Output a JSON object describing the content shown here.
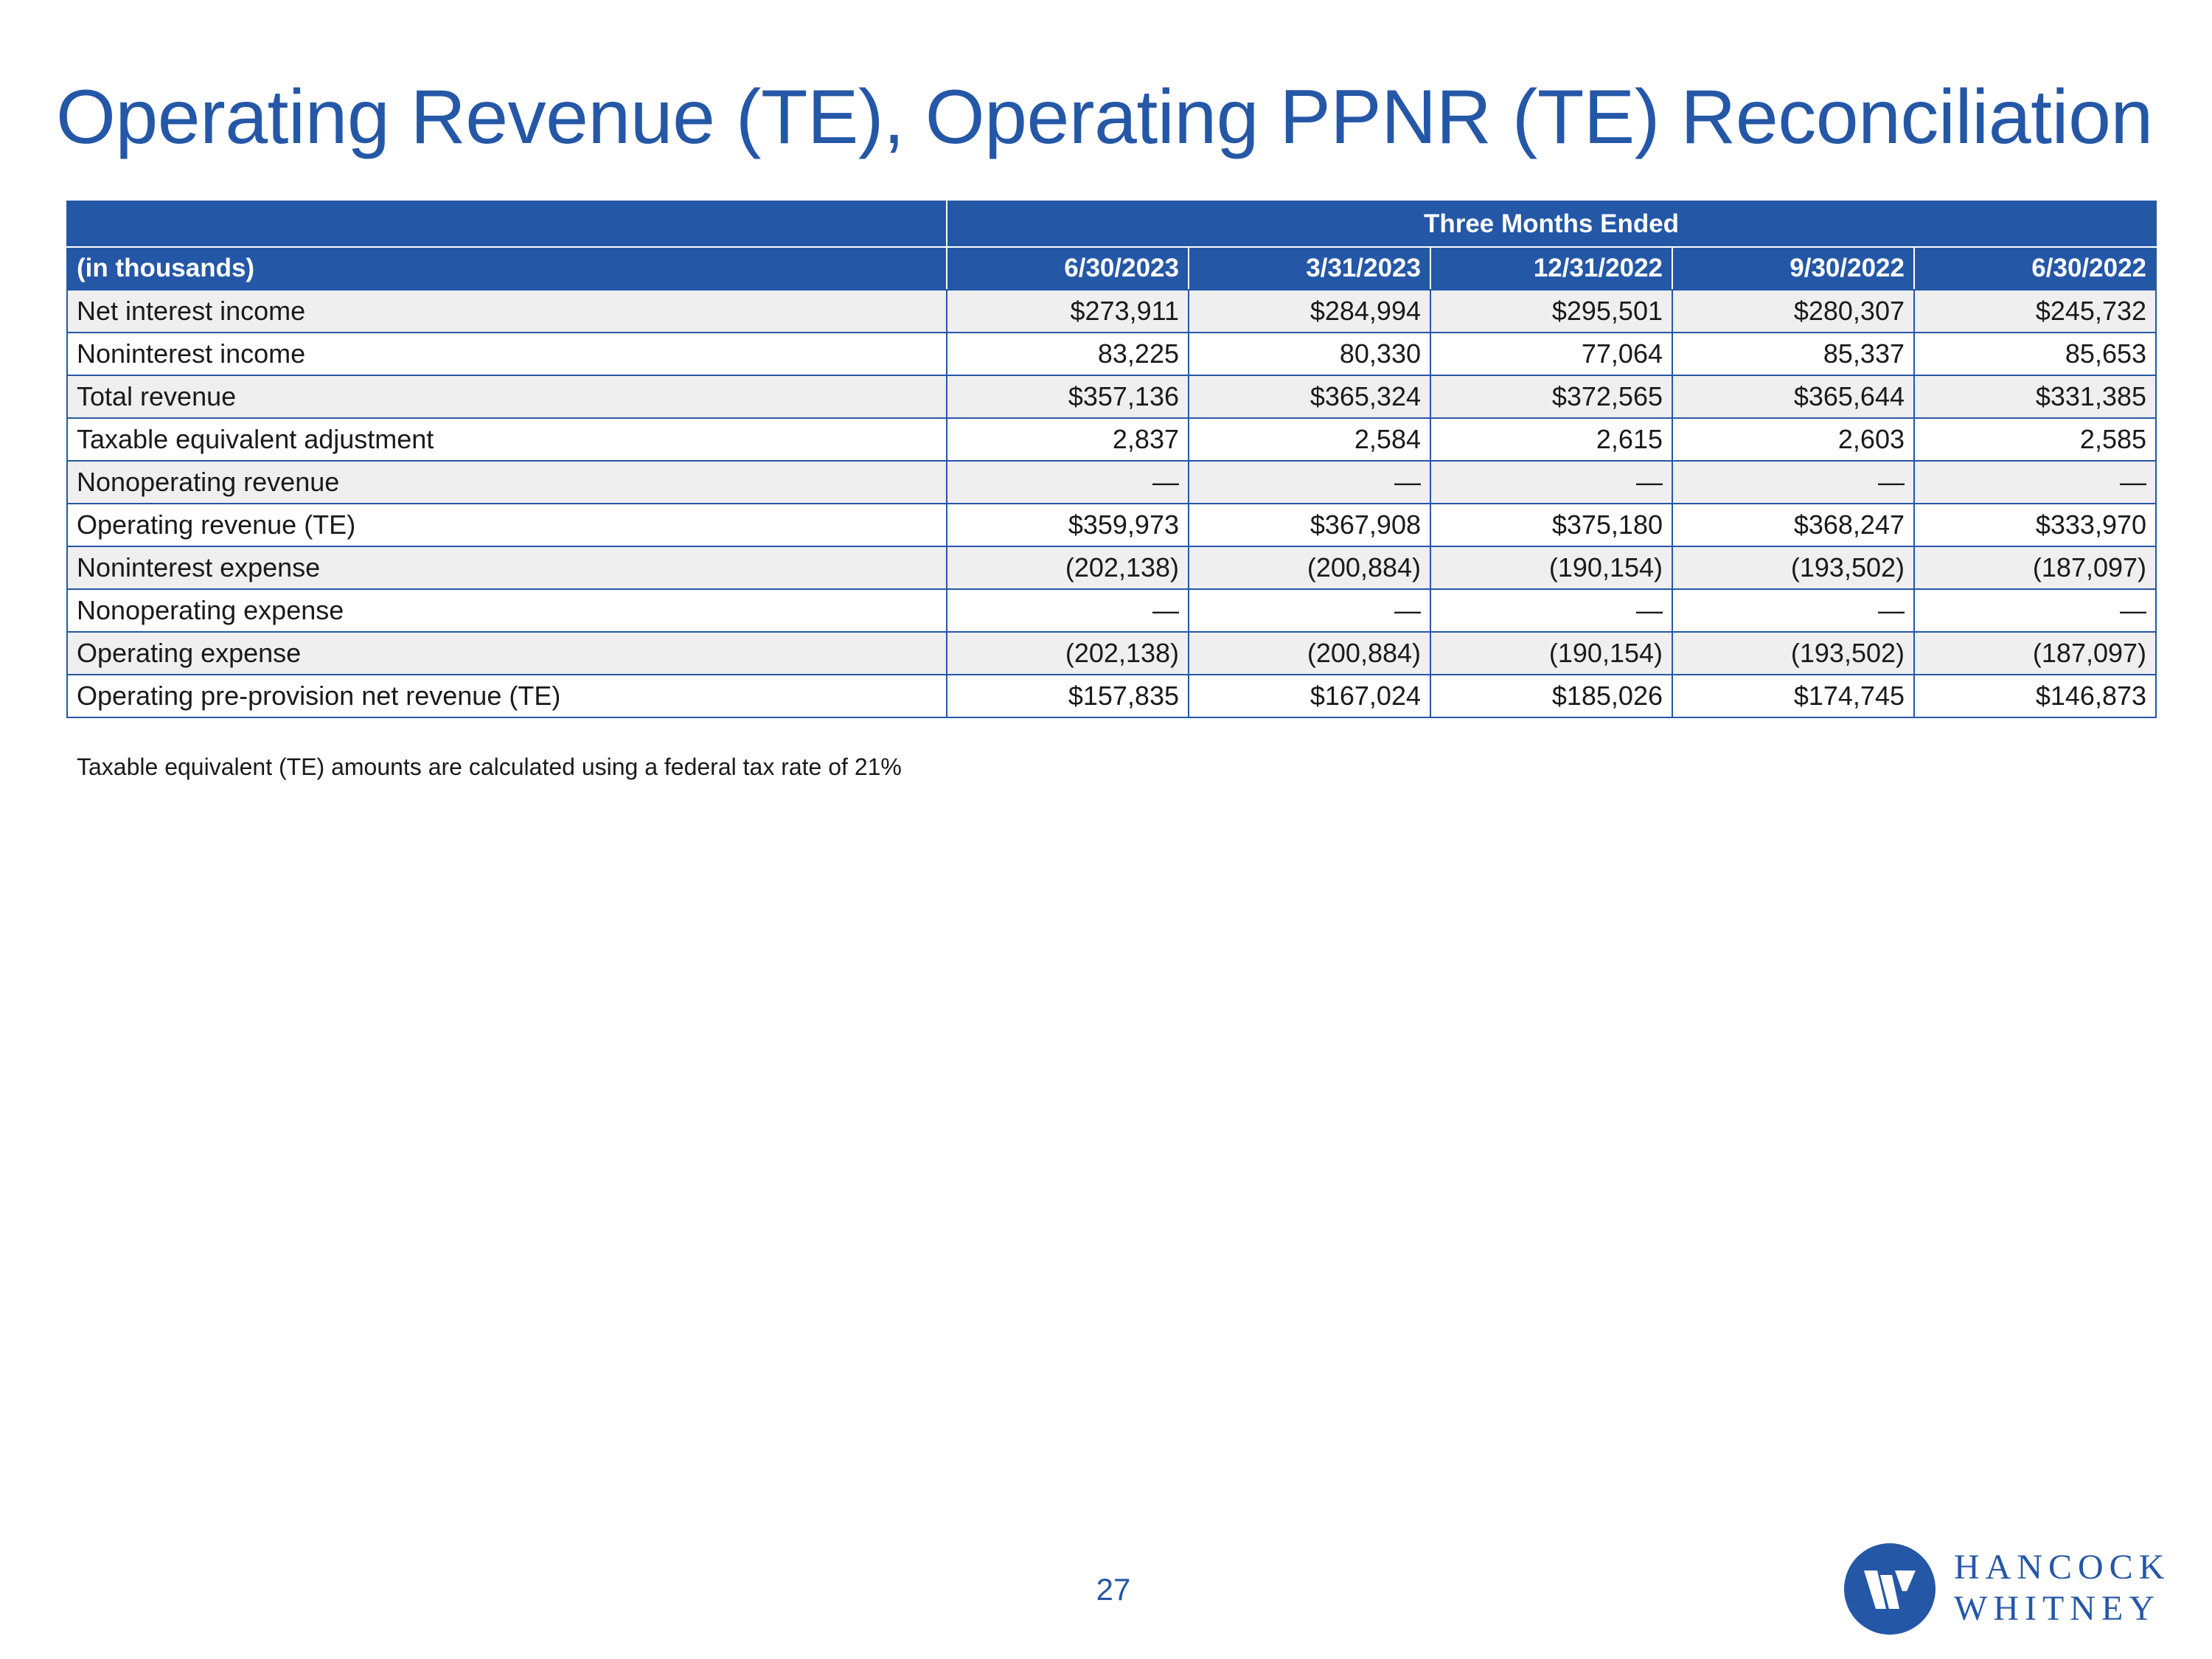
{
  "page": {
    "title": "Operating Revenue (TE), Operating PPNR (TE) Reconciliation",
    "footnote": "Taxable equivalent (TE) amounts are calculated using a federal tax rate of 21%",
    "page_number": "27"
  },
  "table": {
    "group_header": "Three Months Ended",
    "unit_label": "(in thousands)",
    "columns": [
      "6/30/2023",
      "3/31/2023",
      "12/31/2022",
      "9/30/2022",
      "6/30/2022"
    ],
    "rows": [
      {
        "label": "Net interest income",
        "values": [
          "$273,911",
          "$284,994",
          "$295,501",
          "$280,307",
          "$245,732"
        ]
      },
      {
        "label": "Noninterest income",
        "values": [
          "83,225",
          "80,330",
          "77,064",
          "85,337",
          "85,653"
        ]
      },
      {
        "label": "Total revenue",
        "values": [
          "$357,136",
          "$365,324",
          "$372,565",
          "$365,644",
          "$331,385"
        ]
      },
      {
        "label": "Taxable equivalent adjustment",
        "values": [
          "2,837",
          "2,584",
          "2,615",
          "2,603",
          "2,585"
        ]
      },
      {
        "label": "Nonoperating revenue",
        "values": [
          "—",
          "—",
          "—",
          "—",
          "—"
        ]
      },
      {
        "label": "Operating revenue (TE)",
        "values": [
          "$359,973",
          "$367,908",
          "$375,180",
          "$368,247",
          "$333,970"
        ]
      },
      {
        "label": "Noninterest expense",
        "values": [
          "(202,138)",
          "(200,884)",
          "(190,154)",
          "(193,502)",
          "(187,097)"
        ]
      },
      {
        "label": "Nonoperating expense",
        "values": [
          "—",
          "—",
          "—",
          "—",
          "—"
        ]
      },
      {
        "label": "Operating expense",
        "values": [
          "(202,138)",
          "(200,884)",
          "(190,154)",
          "(193,502)",
          "(187,097)"
        ]
      },
      {
        "label": "Operating pre-provision net revenue (TE)",
        "values": [
          "$157,835",
          "$167,024",
          "$185,026",
          "$174,745",
          "$146,873"
        ]
      }
    ]
  },
  "logo": {
    "line1": "HANCOCK",
    "line2": "WHITNEY",
    "brand_color": "#2557a7"
  }
}
